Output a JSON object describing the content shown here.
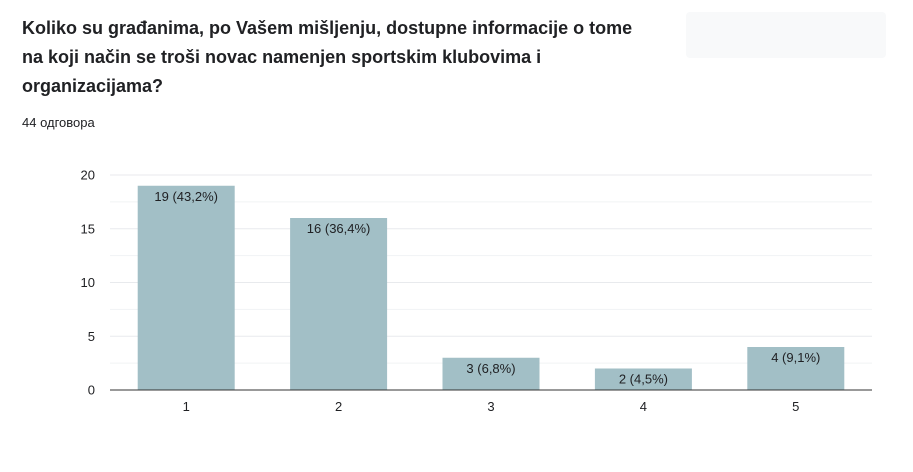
{
  "header": {
    "question": "Koliko su građanima, po Vašem mišljenju, dostupne informacije o tome na koji način se troši novac namenjen sportskim klubovima i organizacijama?",
    "responses": "44 одговора"
  },
  "colors": {
    "bar": "#a2bfc6",
    "grid": "#e8eaed",
    "axis": "#333333"
  },
  "chart_data": {
    "type": "bar",
    "categories": [
      "1",
      "2",
      "3",
      "4",
      "5"
    ],
    "values": [
      19,
      16,
      3,
      2,
      4
    ],
    "data_labels": [
      "19 (43,2%)",
      "16 (36,4%)",
      "3 (6,8%)",
      "2 (4,5%)",
      "4 (9,1%)"
    ],
    "yticks": [
      0,
      5,
      10,
      15,
      20
    ],
    "ylim": [
      0,
      20
    ],
    "xlabel": "",
    "ylabel": "",
    "grid": true,
    "legend": "none"
  }
}
